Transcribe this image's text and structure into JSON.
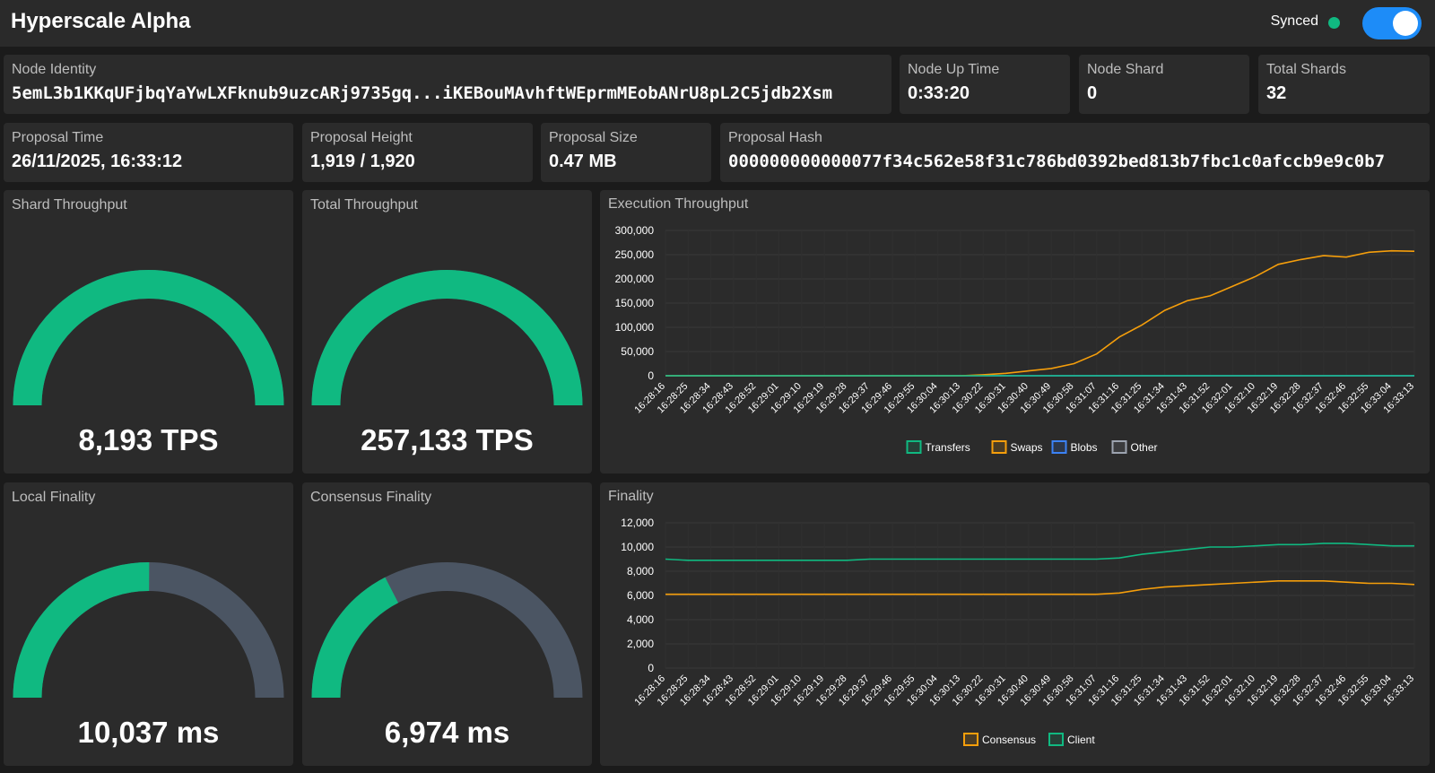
{
  "header": {
    "title": "Hyperscale Alpha",
    "status": "Synced",
    "toggle_on": true
  },
  "cards": [
    {
      "label": "Node Identity",
      "value": "5emL3b1KKqUFjbqYaYwLXFknub9uzcARj9735gq...iKEBouMAvhftWEprmMEobANrU8pL2C5jdb2Xsm"
    },
    {
      "label": "Node Up Time",
      "value": "0:33:20"
    },
    {
      "label": "Node Shard",
      "value": "0"
    },
    {
      "label": "Total Shards",
      "value": "32"
    },
    {
      "label": "Proposal Time",
      "value": "26/11/2025, 16:33:12"
    },
    {
      "label": "Proposal Height",
      "value": "1,919 / 1,920"
    },
    {
      "label": "Proposal Size",
      "value": "0.47 MB"
    },
    {
      "label": "Proposal Hash",
      "value": "000000000000077f34c562e58f31c786bd0392bed813b7fbc1c0afccb9e9c0b7"
    }
  ],
  "gauges": [
    {
      "title": "Shard Throughput",
      "value": 8193,
      "value_label": "8,193 TPS",
      "max": 8193
    },
    {
      "title": "Total Throughput",
      "value": 257133,
      "value_label": "257,133 TPS",
      "max": 257133
    },
    {
      "title": "Local Finality",
      "value": 10037,
      "value_label": "10,037 ms",
      "max": 20000
    },
    {
      "title": "Consensus Finality",
      "value": 6974,
      "value_label": "6,974 ms",
      "max": 20000
    }
  ],
  "chart_data": [
    {
      "type": "line",
      "title": "Execution Throughput",
      "categories": [
        "16:28:16",
        "16:28:25",
        "16:28:34",
        "16:28:43",
        "16:28:52",
        "16:29:01",
        "16:29:10",
        "16:29:19",
        "16:29:28",
        "16:29:37",
        "16:29:46",
        "16:29:55",
        "16:30:04",
        "16:30:13",
        "16:30:22",
        "16:30:31",
        "16:30:40",
        "16:30:49",
        "16:30:58",
        "16:31:07",
        "16:31:16",
        "16:31:25",
        "16:31:34",
        "16:31:43",
        "16:31:52",
        "16:32:01",
        "16:32:10",
        "16:32:19",
        "16:32:28",
        "16:32:37",
        "16:32:46",
        "16:32:55",
        "16:33:04",
        "16:33:13"
      ],
      "series": [
        {
          "name": "Transfers",
          "color": "#10b981",
          "values": [
            0,
            0,
            0,
            0,
            0,
            0,
            0,
            0,
            0,
            0,
            0,
            0,
            0,
            0,
            0,
            0,
            0,
            0,
            0,
            0,
            0,
            0,
            0,
            0,
            0,
            0,
            0,
            0,
            0,
            0,
            0,
            0,
            0,
            0
          ]
        },
        {
          "name": "Swaps",
          "color": "#f59e0b",
          "values": [
            0,
            0,
            0,
            0,
            0,
            0,
            0,
            0,
            0,
            0,
            0,
            0,
            0,
            0,
            2000,
            5000,
            10000,
            15000,
            25000,
            45000,
            80000,
            105000,
            135000,
            155000,
            165000,
            185000,
            205000,
            230000,
            240000,
            248000,
            245000,
            255000,
            258000,
            257000
          ]
        },
        {
          "name": "Blobs",
          "color": "#3b82f6",
          "values": [
            0,
            0,
            0,
            0,
            0,
            0,
            0,
            0,
            0,
            0,
            0,
            0,
            0,
            0,
            0,
            0,
            0,
            0,
            0,
            0,
            0,
            0,
            0,
            0,
            0,
            0,
            0,
            0,
            0,
            0,
            0,
            0,
            0,
            0
          ]
        },
        {
          "name": "Other",
          "color": "#9ca3af",
          "values": [
            0,
            0,
            0,
            0,
            0,
            0,
            0,
            0,
            0,
            0,
            0,
            0,
            0,
            0,
            0,
            0,
            0,
            0,
            0,
            0,
            0,
            0,
            0,
            0,
            0,
            0,
            0,
            0,
            0,
            0,
            0,
            0,
            0,
            0
          ]
        }
      ],
      "ylim": [
        0,
        300000
      ],
      "yticks": [
        0,
        {
          "value": 50000,
          "label": "50,000"
        },
        {
          "value": 100000,
          "label": "100,000"
        },
        {
          "value": 150000,
          "label": "150,000"
        },
        {
          "value": 200000,
          "label": "200,000"
        },
        {
          "value": 250000,
          "label": "250,000"
        },
        {
          "value": 300000,
          "label": "300,000"
        }
      ],
      "grid": true
    },
    {
      "type": "line",
      "title": "Finality",
      "categories": [
        "16:28:16",
        "16:28:25",
        "16:28:34",
        "16:28:43",
        "16:28:52",
        "16:29:01",
        "16:29:10",
        "16:29:19",
        "16:29:28",
        "16:29:37",
        "16:29:46",
        "16:29:55",
        "16:30:04",
        "16:30:13",
        "16:30:22",
        "16:30:31",
        "16:30:40",
        "16:30:49",
        "16:30:58",
        "16:31:07",
        "16:31:16",
        "16:31:25",
        "16:31:34",
        "16:31:43",
        "16:31:52",
        "16:32:01",
        "16:32:10",
        "16:32:19",
        "16:32:28",
        "16:32:37",
        "16:32:46",
        "16:32:55",
        "16:33:04",
        "16:33:13"
      ],
      "series": [
        {
          "name": "Consensus",
          "color": "#f59e0b",
          "values": [
            6100,
            6100,
            6100,
            6100,
            6100,
            6100,
            6100,
            6100,
            6100,
            6100,
            6100,
            6100,
            6100,
            6100,
            6100,
            6100,
            6100,
            6100,
            6100,
            6100,
            6200,
            6500,
            6700,
            6800,
            6900,
            7000,
            7100,
            7200,
            7200,
            7200,
            7100,
            7000,
            7000,
            6900
          ]
        },
        {
          "name": "Client",
          "color": "#10b981",
          "values": [
            9000,
            8900,
            8900,
            8900,
            8900,
            8900,
            8900,
            8900,
            8900,
            9000,
            9000,
            9000,
            9000,
            9000,
            9000,
            9000,
            9000,
            9000,
            9000,
            9000,
            9100,
            9400,
            9600,
            9800,
            10000,
            10000,
            10100,
            10200,
            10200,
            10300,
            10300,
            10200,
            10100,
            10100
          ]
        }
      ],
      "ylim": [
        0,
        12000
      ],
      "yticks": [
        0,
        {
          "value": 2000,
          "label": "2,000"
        },
        {
          "value": 4000,
          "label": "4,000"
        },
        {
          "value": 6000,
          "label": "6,000"
        },
        {
          "value": 8000,
          "label": "8,000"
        },
        {
          "value": 10000,
          "label": "10,000"
        },
        {
          "value": 12000,
          "label": "12,000"
        }
      ],
      "grid": true
    }
  ]
}
